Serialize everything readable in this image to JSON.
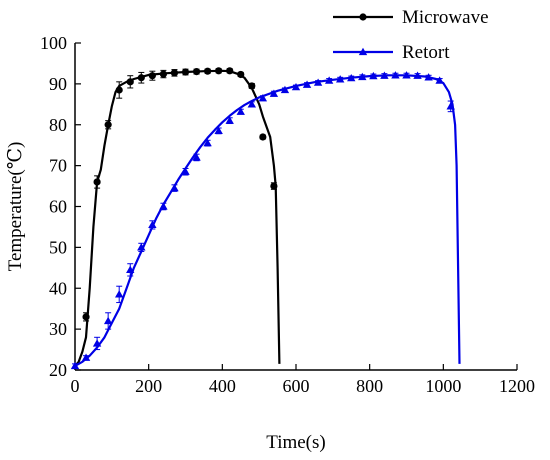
{
  "chart_data": {
    "type": "line",
    "xlabel": "Time(s)",
    "ylabel": "Temperature(℃)",
    "xlim": [
      0,
      1200
    ],
    "ylim": [
      20,
      100
    ],
    "x_ticks": [
      0,
      200,
      400,
      600,
      800,
      1000,
      1200
    ],
    "y_ticks": [
      20,
      30,
      40,
      50,
      60,
      70,
      80,
      90,
      100
    ],
    "grid": false,
    "legend": {
      "placement": "top-right"
    },
    "series": [
      {
        "name": "Microwave",
        "color": "#000000",
        "marker": "circle",
        "curve": [
          [
            0,
            21
          ],
          [
            10,
            22
          ],
          [
            20,
            24.5
          ],
          [
            30,
            28
          ],
          [
            40,
            40
          ],
          [
            50,
            55
          ],
          [
            60,
            66
          ],
          [
            70,
            69
          ],
          [
            80,
            75
          ],
          [
            90,
            80
          ],
          [
            100,
            84.5
          ],
          [
            110,
            88
          ],
          [
            120,
            89.5
          ],
          [
            140,
            90.5
          ],
          [
            160,
            91.2
          ],
          [
            200,
            92.2
          ],
          [
            250,
            92.6
          ],
          [
            300,
            92.9
          ],
          [
            350,
            93.1
          ],
          [
            400,
            93.2
          ],
          [
            420,
            93.1
          ],
          [
            440,
            92.5
          ],
          [
            460,
            91.5
          ],
          [
            480,
            89
          ],
          [
            500,
            85
          ],
          [
            510,
            82
          ],
          [
            530,
            77
          ],
          [
            540,
            70
          ],
          [
            545,
            65
          ],
          [
            550,
            45
          ],
          [
            555,
            21.5
          ]
        ],
        "points": [
          {
            "x": 30,
            "y": 33,
            "err": 1
          },
          {
            "x": 60,
            "y": 66,
            "err": 1.5
          },
          {
            "x": 90,
            "y": 80,
            "err": 1
          },
          {
            "x": 120,
            "y": 88.5,
            "err": 2
          },
          {
            "x": 150,
            "y": 90.5,
            "err": 1.5
          },
          {
            "x": 180,
            "y": 91.5,
            "err": 1.3
          },
          {
            "x": 210,
            "y": 92,
            "err": 1.1
          },
          {
            "x": 240,
            "y": 92.4,
            "err": 0.9
          },
          {
            "x": 270,
            "y": 92.7,
            "err": 0.8
          },
          {
            "x": 300,
            "y": 92.9,
            "err": 0.7
          },
          {
            "x": 330,
            "y": 93,
            "err": 0.6
          },
          {
            "x": 360,
            "y": 93.1,
            "err": 0.5
          },
          {
            "x": 390,
            "y": 93.2,
            "err": 0.5
          },
          {
            "x": 420,
            "y": 93.2,
            "err": 0.5
          },
          {
            "x": 450,
            "y": 92.3,
            "err": 0.5
          },
          {
            "x": 480,
            "y": 89.5,
            "err": 0.6
          },
          {
            "x": 510,
            "y": 77,
            "err": 0.5
          },
          {
            "x": 540,
            "y": 65,
            "err": 0.8
          }
        ]
      },
      {
        "name": "Retort",
        "color": "#0000e6",
        "marker": "triangle",
        "curve": [
          [
            0,
            21
          ],
          [
            20,
            22
          ],
          [
            40,
            23.5
          ],
          [
            60,
            25.5
          ],
          [
            80,
            28
          ],
          [
            100,
            31.5
          ],
          [
            120,
            35
          ],
          [
            140,
            40
          ],
          [
            160,
            45
          ],
          [
            180,
            49
          ],
          [
            200,
            53
          ],
          [
            220,
            57
          ],
          [
            240,
            60.5
          ],
          [
            260,
            63.5
          ],
          [
            280,
            66.5
          ],
          [
            300,
            69.3
          ],
          [
            320,
            72
          ],
          [
            340,
            74.5
          ],
          [
            360,
            76.8
          ],
          [
            380,
            78.8
          ],
          [
            400,
            80.6
          ],
          [
            420,
            82.2
          ],
          [
            440,
            83.6
          ],
          [
            460,
            84.8
          ],
          [
            480,
            85.8
          ],
          [
            500,
            86.7
          ],
          [
            550,
            88.3
          ],
          [
            600,
            89.5
          ],
          [
            650,
            90.4
          ],
          [
            700,
            91
          ],
          [
            750,
            91.5
          ],
          [
            800,
            91.9
          ],
          [
            850,
            92.1
          ],
          [
            900,
            92.1
          ],
          [
            950,
            91.8
          ],
          [
            980,
            91.2
          ],
          [
            1000,
            90.2
          ],
          [
            1015,
            88
          ],
          [
            1025,
            85
          ],
          [
            1032,
            80
          ],
          [
            1036,
            70
          ],
          [
            1040,
            45
          ],
          [
            1044,
            21.5
          ]
        ],
        "points": [
          {
            "x": 0,
            "y": 21,
            "err": 0.5
          },
          {
            "x": 30,
            "y": 23,
            "err": 0.5
          },
          {
            "x": 60,
            "y": 26.5,
            "err": 1.5
          },
          {
            "x": 90,
            "y": 32,
            "err": 2
          },
          {
            "x": 120,
            "y": 38.5,
            "err": 2
          },
          {
            "x": 150,
            "y": 44.5,
            "err": 1.5
          },
          {
            "x": 180,
            "y": 50,
            "err": 1
          },
          {
            "x": 210,
            "y": 55.5,
            "err": 1
          },
          {
            "x": 240,
            "y": 60,
            "err": 0.8
          },
          {
            "x": 270,
            "y": 64.5,
            "err": 0.8
          },
          {
            "x": 300,
            "y": 68.5,
            "err": 0.8
          },
          {
            "x": 330,
            "y": 72,
            "err": 0.8
          },
          {
            "x": 360,
            "y": 75.5,
            "err": 0.7
          },
          {
            "x": 390,
            "y": 78.5,
            "err": 0.7
          },
          {
            "x": 420,
            "y": 81,
            "err": 0.7
          },
          {
            "x": 450,
            "y": 83.2,
            "err": 0.6
          },
          {
            "x": 480,
            "y": 85,
            "err": 0.6
          },
          {
            "x": 510,
            "y": 86.5,
            "err": 0.6
          },
          {
            "x": 540,
            "y": 87.6,
            "err": 0.6
          },
          {
            "x": 570,
            "y": 88.5,
            "err": 0.5
          },
          {
            "x": 600,
            "y": 89.2,
            "err": 0.5
          },
          {
            "x": 630,
            "y": 89.8,
            "err": 0.5
          },
          {
            "x": 660,
            "y": 90.3,
            "err": 0.5
          },
          {
            "x": 690,
            "y": 90.8,
            "err": 0.5
          },
          {
            "x": 720,
            "y": 91.1,
            "err": 0.5
          },
          {
            "x": 750,
            "y": 91.4,
            "err": 0.5
          },
          {
            "x": 780,
            "y": 91.7,
            "err": 0.5
          },
          {
            "x": 810,
            "y": 91.9,
            "err": 0.5
          },
          {
            "x": 840,
            "y": 92,
            "err": 0.5
          },
          {
            "x": 870,
            "y": 92.1,
            "err": 0.5
          },
          {
            "x": 900,
            "y": 92.1,
            "err": 0.5
          },
          {
            "x": 930,
            "y": 92,
            "err": 0.5
          },
          {
            "x": 960,
            "y": 91.6,
            "err": 0.5
          },
          {
            "x": 990,
            "y": 90.8,
            "err": 0.5
          },
          {
            "x": 1020,
            "y": 84.5,
            "err": 1.3
          }
        ]
      }
    ]
  }
}
